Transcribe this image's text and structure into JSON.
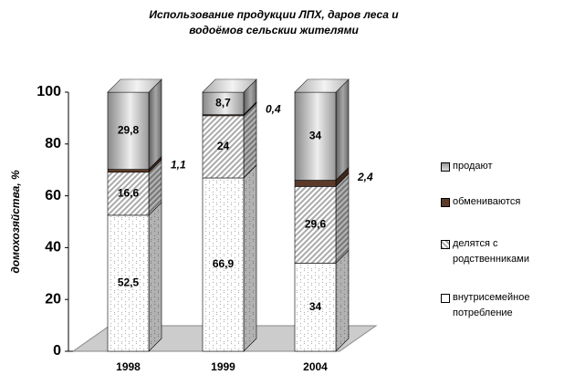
{
  "chart_data": {
    "type": "bar3d_stacked",
    "title": "Использование продукции ЛПХ, даров леса и водоёмов сельскии жителями",
    "ylabel": "домохозяйства, %",
    "categories": [
      "1998",
      "1999",
      "2004"
    ],
    "series": [
      {
        "name": "внутрисемейное потребление",
        "color": "#ffffff",
        "values": [
          52.5,
          66.9,
          34
        ],
        "value_labels": [
          "52,5",
          "66,9",
          "34"
        ]
      },
      {
        "name": "делятся с родственниками",
        "color": "#d9d9d9",
        "values": [
          16.6,
          24,
          29.6
        ],
        "value_labels": [
          "16,6",
          "24",
          "29,6"
        ]
      },
      {
        "name": "обмениваются",
        "color": "#5b3a29",
        "values": [
          1.1,
          0.4,
          2.4
        ],
        "value_labels": [
          "1,1",
          "0,4",
          "2,4"
        ]
      },
      {
        "name": "продают",
        "color": "#a8a8a8",
        "values": [
          29.8,
          8.7,
          34
        ],
        "value_labels": [
          "29,8",
          "8,7",
          "34"
        ]
      }
    ],
    "ylim": [
      0,
      100
    ],
    "yticks": [
      0,
      20,
      40,
      60,
      80,
      100
    ],
    "legend": "right"
  }
}
